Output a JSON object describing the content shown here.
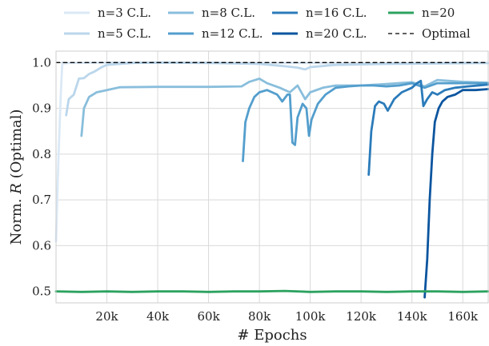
{
  "chart_data": {
    "type": "line",
    "xlabel": "# Epochs",
    "ylabel": "Norm. R (Optimal)",
    "xlim": [
      0,
      170000
    ],
    "ylim": [
      0.475,
      1.025
    ],
    "grid": true,
    "legend_placement": "top (above plot, 4 columns)",
    "x_ticks": [
      20000,
      40000,
      60000,
      80000,
      100000,
      120000,
      140000,
      160000
    ],
    "x_tick_labels": [
      "20k",
      "40k",
      "60k",
      "80k",
      "100k",
      "120k",
      "140k",
      "160k"
    ],
    "y_ticks": [
      0.5,
      0.6,
      0.7,
      0.8,
      0.9,
      1.0
    ],
    "y_tick_labels": [
      "0.5",
      "0.6",
      "0.7",
      "0.8",
      "0.9",
      "1.0"
    ],
    "series": [
      {
        "name": "n=3 C.L.",
        "color": "#dbe9f6",
        "style": "solid",
        "points": [
          [
            0,
            0.61
          ],
          [
            1000,
            0.8
          ],
          [
            2000,
            0.95
          ],
          [
            2500,
            1.0
          ],
          [
            3000,
            0.998
          ],
          [
            5000,
            0.999
          ],
          [
            20000,
            1.0
          ],
          [
            60000,
            1.0
          ],
          [
            80000,
            0.999
          ],
          [
            100000,
            0.999
          ],
          [
            120000,
            0.998
          ],
          [
            140000,
            0.999
          ],
          [
            160000,
            1.0
          ],
          [
            170000,
            0.999
          ]
        ]
      },
      {
        "name": "n=5 C.L.",
        "color": "#bad6eb",
        "style": "solid",
        "points": [
          [
            4000,
            0.885
          ],
          [
            5000,
            0.92
          ],
          [
            7000,
            0.93
          ],
          [
            9000,
            0.965
          ],
          [
            11000,
            0.966
          ],
          [
            13000,
            0.975
          ],
          [
            15000,
            0.98
          ],
          [
            18000,
            0.99
          ],
          [
            20000,
            0.995
          ],
          [
            25000,
            0.997
          ],
          [
            30000,
            0.999
          ],
          [
            40000,
            1.0
          ],
          [
            60000,
            0.999
          ],
          [
            80000,
            0.997
          ],
          [
            90000,
            0.992
          ],
          [
            95000,
            0.989
          ],
          [
            98000,
            0.985
          ],
          [
            100000,
            0.99
          ],
          [
            110000,
            0.995
          ],
          [
            130000,
            0.997
          ],
          [
            150000,
            0.998
          ],
          [
            170000,
            0.999
          ]
        ]
      },
      {
        "name": "n=8 C.L.",
        "color": "#89bedc",
        "style": "solid",
        "points": [
          [
            10000,
            0.84
          ],
          [
            11000,
            0.9
          ],
          [
            13000,
            0.925
          ],
          [
            16000,
            0.935
          ],
          [
            20000,
            0.94
          ],
          [
            25000,
            0.946
          ],
          [
            40000,
            0.947
          ],
          [
            60000,
            0.947
          ],
          [
            73000,
            0.948
          ],
          [
            76000,
            0.958
          ],
          [
            80000,
            0.965
          ],
          [
            83000,
            0.955
          ],
          [
            88000,
            0.945
          ],
          [
            92000,
            0.935
          ],
          [
            95000,
            0.95
          ],
          [
            98000,
            0.92
          ],
          [
            100000,
            0.935
          ],
          [
            105000,
            0.945
          ],
          [
            110000,
            0.95
          ],
          [
            120000,
            0.95
          ],
          [
            130000,
            0.953
          ],
          [
            140000,
            0.957
          ],
          [
            145000,
            0.948
          ],
          [
            150000,
            0.962
          ],
          [
            160000,
            0.958
          ],
          [
            170000,
            0.956
          ]
        ]
      },
      {
        "name": "n=12 C.L.",
        "color": "#539ecd",
        "style": "solid",
        "points": [
          [
            73500,
            0.785
          ],
          [
            74500,
            0.87
          ],
          [
            76000,
            0.9
          ],
          [
            78000,
            0.925
          ],
          [
            80000,
            0.935
          ],
          [
            83000,
            0.94
          ],
          [
            85000,
            0.935
          ],
          [
            87000,
            0.93
          ],
          [
            89000,
            0.915
          ],
          [
            91000,
            0.93
          ],
          [
            92000,
            0.93
          ],
          [
            93000,
            0.825
          ],
          [
            94000,
            0.82
          ],
          [
            95000,
            0.88
          ],
          [
            97000,
            0.91
          ],
          [
            98500,
            0.9
          ],
          [
            99500,
            0.84
          ],
          [
            100500,
            0.875
          ],
          [
            103000,
            0.91
          ],
          [
            106000,
            0.93
          ],
          [
            110000,
            0.945
          ],
          [
            115000,
            0.948
          ],
          [
            120000,
            0.95
          ],
          [
            125000,
            0.95
          ],
          [
            130000,
            0.948
          ],
          [
            135000,
            0.95
          ],
          [
            140000,
            0.955
          ],
          [
            145000,
            0.945
          ],
          [
            150000,
            0.955
          ],
          [
            160000,
            0.955
          ],
          [
            170000,
            0.955
          ]
        ]
      },
      {
        "name": "n=16 C.L.",
        "color": "#2b7bba",
        "style": "solid",
        "points": [
          [
            123000,
            0.755
          ],
          [
            124000,
            0.85
          ],
          [
            125500,
            0.905
          ],
          [
            127000,
            0.915
          ],
          [
            129000,
            0.91
          ],
          [
            130500,
            0.895
          ],
          [
            133000,
            0.92
          ],
          [
            136000,
            0.935
          ],
          [
            140000,
            0.945
          ],
          [
            142000,
            0.955
          ],
          [
            143500,
            0.96
          ],
          [
            144500,
            0.905
          ],
          [
            146000,
            0.92
          ],
          [
            148000,
            0.935
          ],
          [
            150000,
            0.93
          ],
          [
            153000,
            0.94
          ],
          [
            157000,
            0.945
          ],
          [
            162000,
            0.948
          ],
          [
            170000,
            0.952
          ]
        ]
      },
      {
        "name": "n=20 C.L.",
        "color": "#0b559f",
        "style": "solid",
        "points": [
          [
            145000,
            0.487
          ],
          [
            146000,
            0.57
          ],
          [
            147000,
            0.7
          ],
          [
            148000,
            0.8
          ],
          [
            149000,
            0.87
          ],
          [
            150500,
            0.9
          ],
          [
            152000,
            0.915
          ],
          [
            154000,
            0.925
          ],
          [
            157000,
            0.93
          ],
          [
            160000,
            0.94
          ],
          [
            165000,
            0.94
          ],
          [
            170000,
            0.942
          ]
        ]
      },
      {
        "name": "n=20",
        "color": "#2ca25f",
        "style": "solid",
        "points": [
          [
            0,
            0.5
          ],
          [
            10000,
            0.499
          ],
          [
            20000,
            0.5
          ],
          [
            30000,
            0.499
          ],
          [
            40000,
            0.5
          ],
          [
            50000,
            0.5
          ],
          [
            60000,
            0.499
          ],
          [
            70000,
            0.5
          ],
          [
            80000,
            0.5
          ],
          [
            90000,
            0.501
          ],
          [
            100000,
            0.499
          ],
          [
            110000,
            0.5
          ],
          [
            120000,
            0.5
          ],
          [
            130000,
            0.499
          ],
          [
            140000,
            0.5
          ],
          [
            150000,
            0.5
          ],
          [
            160000,
            0.499
          ],
          [
            170000,
            0.5
          ]
        ]
      },
      {
        "name": "Optimal",
        "color": "#000000",
        "style": "dashed",
        "points": [
          [
            0,
            1.0
          ],
          [
            170000,
            1.0
          ]
        ]
      }
    ]
  }
}
